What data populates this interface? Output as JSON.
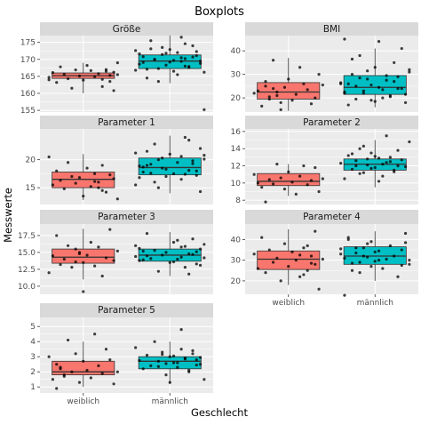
{
  "title": "Boxplots",
  "xlabel": "Geschlecht",
  "ylabel": "Messwerte",
  "colors": {
    "weiblich": "#F8766D",
    "maennlich": "#00BFC4",
    "panel_bg": "#EBEBEB",
    "strip_bg": "#D9D9D9",
    "grid": "#FFFFFF"
  },
  "chart_data": [
    {
      "type": "box",
      "title": "Größe",
      "categories": [
        "weiblich",
        "männlich"
      ],
      "ylim": [
        154.5,
        177
      ],
      "yticks": [
        155,
        160,
        165,
        170,
        175
      ],
      "boxes": [
        {
          "group": "weiblich",
          "min": 160,
          "q1": 164.4,
          "median": 165.2,
          "q3": 166,
          "max": 169
        },
        {
          "group": "männlich",
          "min": 163,
          "q1": 167.3,
          "median": 169.5,
          "q3": 171.3,
          "max": 177
        }
      ],
      "points": [
        [
          164,
          165.5,
          166.2,
          163.5,
          167,
          162,
          165.8,
          164.9,
          166.7,
          168.2,
          163.9,
          165.1,
          166.9,
          161.5,
          164.3,
          165.6,
          167.8,
          163.2,
          166.1,
          164.7,
          169,
          160.8,
          165.3,
          166.5,
          164.1
        ],
        [
          168,
          170.5,
          172,
          166.5,
          169.2,
          171.8,
          173.5,
          167.3,
          169.9,
          175.5,
          164.5,
          170.8,
          168.6,
          172.6,
          166.2,
          169.5,
          171.1,
          174,
          167.9,
          170.2,
          176.5,
          165.5,
          169.7,
          172.9,
          168.3,
          171.4,
          163.5,
          170,
          173.1,
          167.1,
          169.1,
          171.6,
          166.8,
          155.2,
          168.8,
          172.3,
          170.7,
          167.6,
          174.6,
          169.4
        ]
      ]
    },
    {
      "type": "box",
      "title": "BMI",
      "categories": [
        "weiblich",
        "männlich"
      ],
      "ylim": [
        14,
        46.5
      ],
      "yticks": [
        20,
        30,
        40
      ],
      "boxes": [
        {
          "group": "weiblich",
          "min": 14.5,
          "q1": 19.5,
          "median": 22.5,
          "q3": 26.5,
          "max": 37
        },
        {
          "group": "männlich",
          "min": 16,
          "q1": 21.5,
          "median": 24.5,
          "q3": 29.5,
          "max": 41
        }
      ],
      "points": [
        [
          18,
          21,
          24,
          19.5,
          27,
          16.5,
          23,
          22,
          25.5,
          30,
          20,
          17.5,
          23.5,
          26,
          33,
          21.5,
          19,
          28,
          24.5,
          15,
          22.5,
          36,
          20.5,
          25
        ],
        [
          22,
          26,
          31,
          18,
          24,
          29,
          35,
          21,
          27.5,
          20,
          24.5,
          33,
          19,
          28,
          23,
          38,
          25,
          30,
          17,
          22.5,
          26.5,
          32,
          21.5,
          41,
          24,
          27,
          20.5,
          29.5,
          23.5,
          44,
          18.5,
          25.5,
          31.5,
          22,
          28.5,
          19.5,
          36.5,
          26,
          45
        ]
      ]
    },
    {
      "type": "box",
      "title": "Parameter 1",
      "categories": [
        "weiblich",
        "männlich"
      ],
      "ylim": [
        12,
        25.5
      ],
      "yticks": [
        15,
        20
      ],
      "boxes": [
        {
          "group": "weiblich",
          "min": 12.8,
          "q1": 15,
          "median": 16.5,
          "q3": 17.8,
          "max": 21
        },
        {
          "group": "männlich",
          "min": 14,
          "q1": 17.3,
          "median": 18.6,
          "q3": 20.3,
          "max": 24.3
        }
      ],
      "points": [
        [
          14.5,
          16,
          17.5,
          15.2,
          18.5,
          13.5,
          16.8,
          15.8,
          17,
          19.5,
          14.8,
          16.3,
          18,
          15.5,
          20.5,
          13,
          16.6,
          17.3,
          14.2,
          19,
          15,
          16.1
        ],
        [
          17,
          18.5,
          20,
          16,
          19.2,
          21.5,
          17.8,
          18.9,
          15.5,
          20.8,
          22,
          17.2,
          19.8,
          18.1,
          24,
          16.5,
          19.5,
          17.5,
          21,
          18.3,
          20.3,
          15,
          22.8,
          17.6,
          19,
          18.7,
          16.8,
          21.2,
          20.1,
          14.3,
          18,
          19.3,
          23.5,
          17.4,
          20.6
        ]
      ]
    },
    {
      "type": "box",
      "title": "Parameter 2",
      "categories": [
        "weiblich",
        "männlich"
      ],
      "ylim": [
        7.5,
        16.3
      ],
      "yticks": [
        8,
        10,
        12,
        14,
        16
      ],
      "boxes": [
        {
          "group": "weiblich",
          "min": 8.5,
          "q1": 9.7,
          "median": 10.2,
          "q3": 11.1,
          "max": 12.2
        },
        {
          "group": "männlich",
          "min": 9.5,
          "q1": 11.5,
          "median": 12.2,
          "q3": 12.8,
          "max": 15
        }
      ],
      "points": [
        [
          9.5,
          10,
          11,
          10.5,
          9,
          11.8,
          10.3,
          9.8,
          12,
          10.8,
          8.7,
          10.1,
          11.3,
          9.3,
          10.6,
          12.2,
          9.9,
          10.4,
          7.8
        ],
        [
          12,
          11.5,
          13,
          12.4,
          10.8,
          12.9,
          11.8,
          13.5,
          12.1,
          11.2,
          14,
          12.6,
          11.6,
          13.2,
          10.5,
          12.3,
          14.8,
          11.9,
          12.7,
          13.8,
          11.3,
          12.5,
          15.5,
          12.2,
          10.2,
          13.1,
          11.7,
          12.8,
          14.3,
          11.1,
          12,
          13.4
        ]
      ]
    },
    {
      "type": "box",
      "title": "Parameter 3",
      "categories": [
        "weiblich",
        "männlich"
      ],
      "ylim": [
        8.8,
        19.2
      ],
      "yticks": [
        10.0,
        12.5,
        15.0,
        17.5
      ],
      "boxes": [
        {
          "group": "weiblich",
          "min": 11,
          "q1": 13.4,
          "median": 14.3,
          "q3": 15.5,
          "max": 18.5
        },
        {
          "group": "männlich",
          "min": 11.5,
          "q1": 13.7,
          "median": 14.6,
          "q3": 15.5,
          "max": 18
        }
      ],
      "points": [
        [
          13.5,
          14.8,
          15.5,
          12.8,
          16,
          14,
          13.2,
          17.5,
          14.5,
          12,
          15.2,
          13.8,
          18.4,
          14.2,
          11.5,
          15.8,
          13,
          16.5,
          14.6,
          9.2,
          15,
          13.6
        ],
        [
          14.5,
          15.2,
          13.8,
          16,
          14.2,
          15.5,
          13.3,
          17,
          14.8,
          12.8,
          15.8,
          14,
          16.5,
          13.5,
          15,
          14.6,
          12.2,
          15.3,
          14.1,
          17.8,
          13.9,
          15.6,
          14.4,
          16.2,
          13.1,
          15.1,
          14.7,
          11.8,
          15.9,
          14.3,
          16.8,
          13.6
        ]
      ]
    },
    {
      "type": "box",
      "title": "Parameter 4",
      "categories": [
        "weiblich",
        "männlich"
      ],
      "xticks": [
        "weiblich",
        "männlich"
      ],
      "ylim": [
        13.5,
        47.5
      ],
      "yticks": [
        20,
        30,
        40
      ],
      "boxes": [
        {
          "group": "weiblich",
          "min": 18,
          "q1": 25.5,
          "median": 30.5,
          "q3": 34.5,
          "max": 45
        },
        {
          "group": "männlich",
          "min": 20,
          "q1": 28,
          "median": 32,
          "q3": 36.5,
          "max": 44
        }
      ],
      "points": [
        [
          28,
          32,
          25,
          36,
          22,
          30,
          34,
          27,
          38,
          20,
          31,
          29,
          35,
          24,
          41,
          26,
          33,
          30.5,
          16,
          44,
          28.5,
          37,
          23,
          32.5
        ],
        [
          30,
          34,
          27,
          38,
          32,
          29,
          36,
          25,
          40,
          31,
          33,
          28,
          43,
          35,
          22,
          32,
          37,
          30.5,
          26,
          34.5,
          29.5,
          39,
          31.5,
          36,
          24,
          33.5,
          28.5,
          41,
          13,
          35.5,
          30,
          38.5,
          27.5
        ]
      ]
    },
    {
      "type": "box",
      "title": "Parameter 5",
      "categories": [
        "weiblich",
        "männlich"
      ],
      "xticks": [
        "weiblich",
        "männlich"
      ],
      "ylim": [
        0.6,
        5.6
      ],
      "yticks": [
        1,
        2,
        3,
        4,
        5
      ],
      "boxes": [
        {
          "group": "weiblich",
          "min": 1,
          "q1": 1.8,
          "median": 2,
          "q3": 2.7,
          "max": 4
        },
        {
          "group": "männlich",
          "min": 1.2,
          "q1": 2.2,
          "median": 2.7,
          "q3": 3,
          "max": 4
        }
      ],
      "points": [
        [
          1.8,
          2.2,
          2.5,
          1.5,
          3,
          2,
          1.2,
          2.8,
          3.5,
          1.9,
          2.4,
          4.5,
          1.6,
          2.1,
          2.7,
          1.3,
          3.2,
          2,
          4.1,
          1.7,
          2.3,
          0.9
        ],
        [
          2.5,
          2.8,
          3.2,
          2.1,
          2.9,
          3.5,
          2.3,
          2.6,
          3,
          1.8,
          3.3,
          2.7,
          4,
          2.4,
          3.1,
          2.2,
          2.75,
          3.6,
          1.5,
          2.95,
          2.45,
          3.4,
          2,
          2.85,
          4.8,
          2.6,
          3.05,
          1.3,
          2.55,
          3.15,
          2.35
        ]
      ]
    }
  ]
}
